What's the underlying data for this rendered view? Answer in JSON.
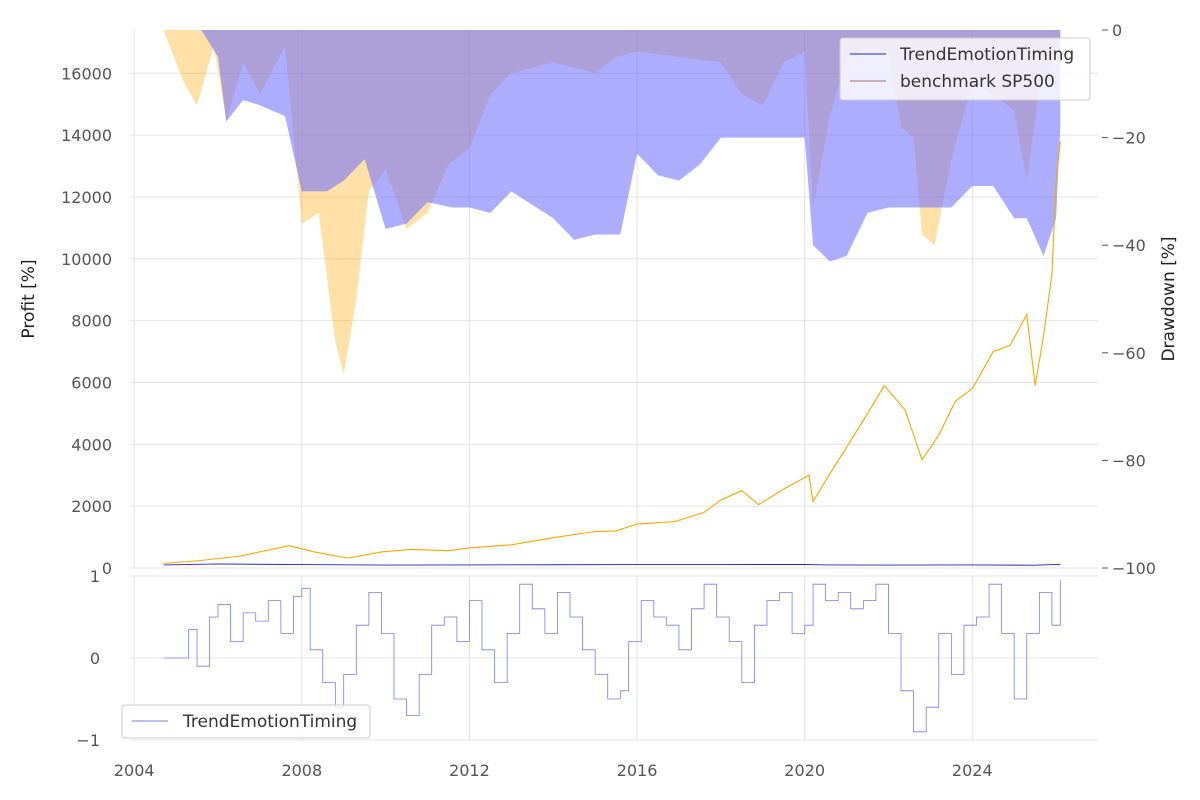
{
  "chart_data": [
    {
      "type": "line",
      "panel": "profit-and-drawdown",
      "ylabel": "Profit [%]",
      "ylabel_right": "Drawdown [%]",
      "ylim": [
        0,
        17400
      ],
      "ylim_right": [
        -100,
        0
      ],
      "yticks": [
        "0",
        "2000",
        "4000",
        "6000",
        "8000",
        "10000",
        "12000",
        "14000",
        "16000"
      ],
      "yticks_right": [
        "0",
        "−20",
        "−40",
        "−60",
        "−80",
        "−100"
      ],
      "grid": true,
      "legend_position": "top-right",
      "legend": [
        "TrendEmotionTiming",
        "benchmark SP500"
      ],
      "series": [
        {
          "name": "TrendEmotionTiming",
          "color": "#1f1fd6",
          "x": [
            2004.7,
            2006.0,
            2008.0,
            2010.0,
            2012.0,
            2014.0,
            2016.0,
            2018.0,
            2020.0,
            2020.5,
            2022.0,
            2024.0,
            2025.5,
            2026.1
          ],
          "y": [
            100,
            130,
            110,
            95,
            100,
            105,
            110,
            112,
            115,
            100,
            95,
            100,
            90,
            120
          ]
        },
        {
          "name": "benchmark SP500",
          "color": "#ffa500",
          "x": [
            2004.7,
            2005.5,
            2006.5,
            2007.7,
            2008.3,
            2009.1,
            2009.9,
            2010.6,
            2011.5,
            2012.0,
            2013.0,
            2014.0,
            2015.0,
            2015.5,
            2016.0,
            2016.9,
            2017.6,
            2018.0,
            2018.5,
            2018.9,
            2019.5,
            2020.1,
            2020.2,
            2020.6,
            2021.0,
            2021.5,
            2021.9,
            2022.4,
            2022.8,
            2023.2,
            2023.6,
            2024.0,
            2024.5,
            2024.9,
            2025.1,
            2025.3,
            2025.5,
            2025.7,
            2025.9,
            2026.0,
            2026.1
          ],
          "y": [
            150,
            230,
            380,
            720,
            520,
            320,
            520,
            600,
            560,
            650,
            750,
            980,
            1180,
            1200,
            1420,
            1500,
            1800,
            2200,
            2500,
            2050,
            2550,
            3000,
            2150,
            3050,
            3900,
            5000,
            5900,
            5100,
            3500,
            4300,
            5400,
            5800,
            7000,
            7200,
            7700,
            8200,
            5900,
            7500,
            9500,
            12500,
            13800
          ]
        }
      ],
      "drawdown_series": [
        {
          "name": "TrendEmotionTiming",
          "color": "#6a6aff",
          "x": [
            2005.6,
            2006.0,
            2006.2,
            2006.6,
            2007.0,
            2007.6,
            2008.0,
            2008.6,
            2009.0,
            2009.5,
            2010.0,
            2010.5,
            2011.0,
            2011.6,
            2012.0,
            2012.5,
            2013.0,
            2013.6,
            2014.0,
            2014.5,
            2015.0,
            2015.6,
            2016.0,
            2016.5,
            2017.0,
            2017.5,
            2018.0,
            2018.5,
            2019.0,
            2019.5,
            2020.0,
            2020.2,
            2020.6,
            2021.0,
            2021.5,
            2022.0,
            2022.5,
            2023.0,
            2023.5,
            2024.0,
            2024.5,
            2025.0,
            2025.3,
            2025.7,
            2026.0,
            2026.1
          ],
          "y": [
            0,
            -5,
            -17,
            -13,
            -14,
            -16,
            -30,
            -30,
            -28,
            -24,
            -37,
            -36,
            -32,
            -33,
            -33,
            -34,
            -30,
            -33,
            -35,
            -39,
            -38,
            -38,
            -23,
            -27,
            -28,
            -25,
            -20,
            -20,
            -20,
            -20,
            -20,
            -40,
            -43,
            -42,
            -34,
            -33,
            -33,
            -33,
            -33,
            -29,
            -29,
            -35,
            -35,
            -42,
            -35,
            -18
          ]
        },
        {
          "name": "benchmark SP500",
          "color": "#ffa500",
          "x": [
            2004.7,
            2005.2,
            2005.5,
            2005.9,
            2006.2,
            2006.6,
            2007.0,
            2007.6,
            2008.0,
            2008.4,
            2008.8,
            2009.0,
            2009.3,
            2009.6,
            2010.0,
            2010.5,
            2011.0,
            2011.5,
            2012.0,
            2012.5,
            2013.0,
            2014.0,
            2015.0,
            2015.5,
            2016.0,
            2017.0,
            2018.0,
            2018.5,
            2019.0,
            2019.5,
            2020.0,
            2020.2,
            2020.6,
            2021.0,
            2021.6,
            2022.0,
            2022.3,
            2022.6,
            2022.8,
            2023.1,
            2023.5,
            2024.0,
            2024.5,
            2025.0,
            2025.3,
            2025.6,
            2025.8,
            2026.1
          ],
          "y": [
            0,
            -10,
            -14,
            -3,
            -17,
            -6,
            -12,
            -3,
            -36,
            -34,
            -58,
            -64,
            -50,
            -30,
            -26,
            -37,
            -34,
            -25,
            -22,
            -12,
            -8,
            -6,
            -8,
            -5,
            -4,
            -5,
            -6,
            -12,
            -14,
            -6,
            -4,
            -33,
            -16,
            -5,
            -3,
            -4,
            -18,
            -20,
            -38,
            -40,
            -24,
            -10,
            -12,
            -15,
            -28,
            -11,
            -8,
            -2
          ]
        }
      ]
    },
    {
      "type": "line",
      "panel": "signal",
      "ylim": [
        -1,
        1
      ],
      "yticks": [
        "−1",
        "0",
        "1"
      ],
      "grid": true,
      "legend_position": "bottom-left",
      "legend": [
        "TrendEmotionTiming"
      ],
      "series": [
        {
          "name": "TrendEmotionTiming",
          "color": "#7b7bf0",
          "x": [
            2004.7,
            2005.0,
            2005.3,
            2005.5,
            2005.8,
            2006.0,
            2006.3,
            2006.6,
            2006.9,
            2007.2,
            2007.5,
            2007.8,
            2008.0,
            2008.2,
            2008.5,
            2008.8,
            2009.0,
            2009.3,
            2009.6,
            2009.9,
            2010.2,
            2010.5,
            2010.8,
            2011.1,
            2011.4,
            2011.7,
            2012.0,
            2012.3,
            2012.6,
            2012.9,
            2013.2,
            2013.5,
            2013.8,
            2014.1,
            2014.4,
            2014.7,
            2015.0,
            2015.3,
            2015.6,
            2015.8,
            2016.1,
            2016.4,
            2016.7,
            2017.0,
            2017.3,
            2017.6,
            2017.9,
            2018.2,
            2018.5,
            2018.8,
            2019.1,
            2019.4,
            2019.7,
            2020.0,
            2020.2,
            2020.5,
            2020.8,
            2021.1,
            2021.4,
            2021.7,
            2022.0,
            2022.3,
            2022.6,
            2022.9,
            2023.2,
            2023.5,
            2023.8,
            2024.1,
            2024.4,
            2024.7,
            2025.0,
            2025.3,
            2025.6,
            2025.9,
            2026.1
          ],
          "y": [
            0,
            0,
            0.35,
            -0.1,
            0.5,
            0.65,
            0.2,
            0.55,
            0.45,
            0.7,
            0.3,
            0.75,
            0.85,
            0.1,
            -0.3,
            -0.6,
            -0.2,
            0.4,
            0.8,
            0.3,
            -0.5,
            -0.7,
            -0.2,
            0.4,
            0.5,
            0.2,
            0.7,
            0.1,
            -0.3,
            0.3,
            0.9,
            0.6,
            0.3,
            0.8,
            0.5,
            0.1,
            -0.2,
            -0.5,
            -0.4,
            0.2,
            0.7,
            0.5,
            0.4,
            0.1,
            0.6,
            0.9,
            0.5,
            0.2,
            -0.3,
            0.4,
            0.7,
            0.8,
            0.3,
            0.4,
            0.9,
            0.7,
            0.8,
            0.6,
            0.7,
            0.9,
            0.3,
            -0.4,
            -0.9,
            -0.6,
            0.3,
            -0.2,
            0.4,
            0.5,
            0.9,
            0.3,
            -0.5,
            0.3,
            0.8,
            0.4,
            0.95
          ]
        }
      ]
    }
  ],
  "x_axis": {
    "ticks": [
      "2004",
      "2008",
      "2012",
      "2016",
      "2020",
      "2024"
    ],
    "tick_values": [
      2004,
      2008,
      2012,
      2016,
      2020,
      2024
    ],
    "xlim": [
      2003.9,
      2027.0
    ]
  }
}
